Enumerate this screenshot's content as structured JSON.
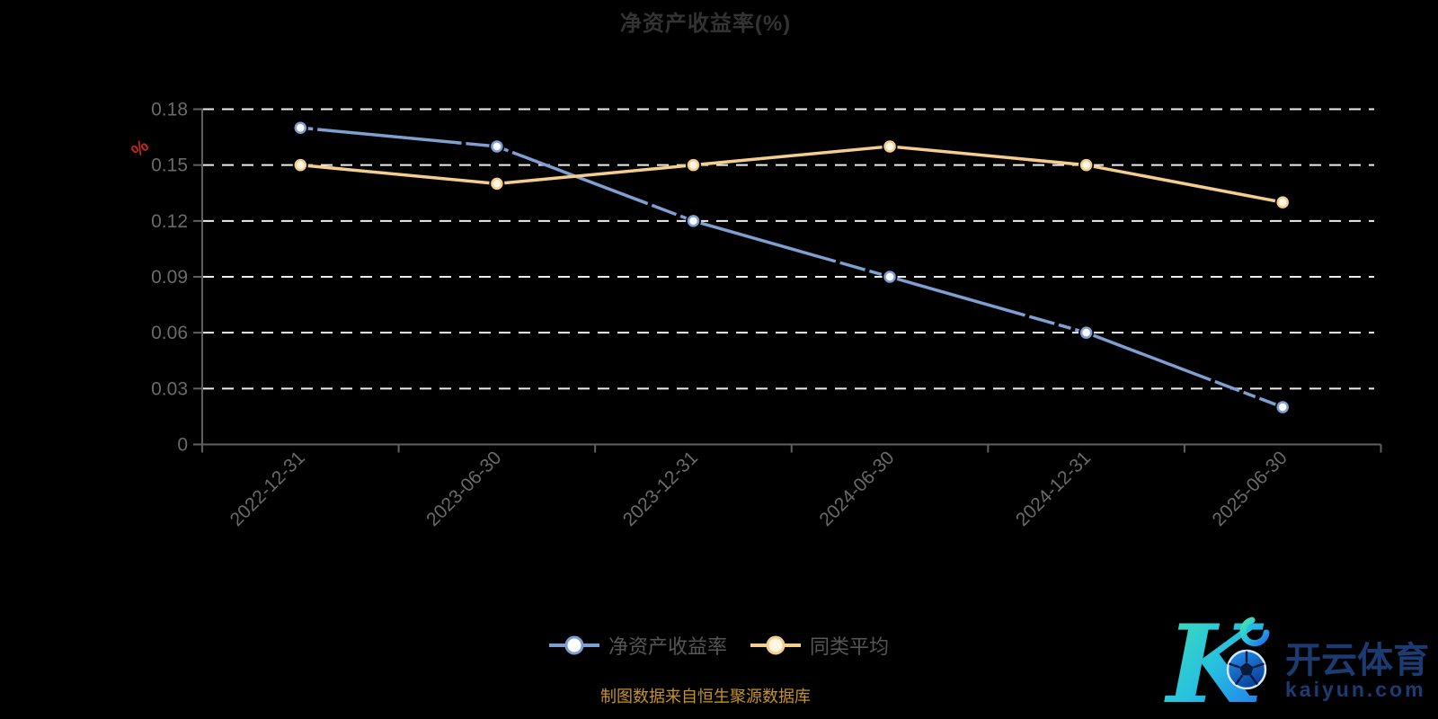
{
  "chart_data": {
    "type": "line",
    "title": "净资产收益率(%)",
    "x": [
      "2022-12-31",
      "2023-06-30",
      "2023-12-31",
      "2024-06-30",
      "2024-12-31",
      "2025-06-30"
    ],
    "series": [
      {
        "name": "净资产收益率",
        "color": "#7e9fd2",
        "marker_fill": "#ffffff",
        "line_style": "solid-with-gaps",
        "values": [
          0.17,
          0.16,
          0.12,
          0.09,
          0.06,
          0.02
        ]
      },
      {
        "name": "同类平均",
        "color": "#f5cd8e",
        "marker_fill": "#fff6e4",
        "line_style": "solid",
        "values": [
          0.15,
          0.14,
          0.15,
          0.16,
          0.15,
          0.13
        ]
      }
    ],
    "ylim": [
      0,
      0.18
    ],
    "yticks": [
      0,
      0.03,
      0.06,
      0.09,
      0.12,
      0.15,
      0.18
    ],
    "y_axis_name": "%",
    "grid": "horizontal-dashed-white",
    "legend_position": "bottom-center"
  },
  "footer": "制图数据来自恒生聚源数据库",
  "logo": {
    "k_letter": "K",
    "brand_cn": "开云体育",
    "brand_domain": "kaiyun.com"
  },
  "colors": {
    "background": "#000000",
    "title_text": "#333333",
    "series_roe": "#7e9fd2",
    "series_avg": "#f5cd8e",
    "grid_line": "#ededed",
    "axis_line": "#606060",
    "axis_label": "#6a6a6a",
    "y_axis_name_red": "#c2281e",
    "legend_text": "#565656",
    "footer_gold": "#c79225",
    "logo_navy": "#1c3b72",
    "logo_gradient": [
      "#3fe4ae",
      "#28c0e0",
      "#1f6cf0"
    ],
    "marker_halo": "#000000"
  }
}
